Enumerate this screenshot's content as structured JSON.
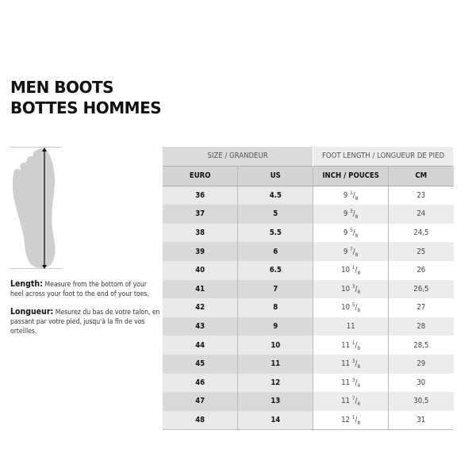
{
  "title": {
    "line1": "MEN BOOTS",
    "line2": "BOTTES HOMMES"
  },
  "length": {
    "label": "Length:",
    "text": " Measure from the bottom of your heel across your foot to the end of your toes."
  },
  "longueur": {
    "label": "Longueur:",
    "text": " Mesurez du bas de votre talon, en passant par votre pied, jusqu'à la fin de vos orteilles."
  },
  "table": {
    "group_headers": [
      "SIZE / GRANDEUR",
      "FOOT LENGTH / LONGUEUR DE PIED"
    ],
    "headers": [
      "EURO",
      "US",
      "INCH / POUCES",
      "CM"
    ],
    "rows": [
      {
        "euro": "36",
        "us": "4.5",
        "inch_whole": "9",
        "inch_num": "1",
        "inch_den": "8",
        "cm": "23"
      },
      {
        "euro": "37",
        "us": "5",
        "inch_whole": "9",
        "inch_num": "3",
        "inch_den": "8",
        "cm": "24"
      },
      {
        "euro": "38",
        "us": "5.5",
        "inch_whole": "9",
        "inch_num": "5",
        "inch_den": "8",
        "cm": "24,5"
      },
      {
        "euro": "39",
        "us": "6",
        "inch_whole": "9",
        "inch_num": "7",
        "inch_den": "8",
        "cm": "25"
      },
      {
        "euro": "40",
        "us": "6.5",
        "inch_whole": "10",
        "inch_num": "1",
        "inch_den": "8",
        "cm": "26"
      },
      {
        "euro": "41",
        "us": "7",
        "inch_whole": "10",
        "inch_num": "3",
        "inch_den": "8",
        "cm": "26,5"
      },
      {
        "euro": "42",
        "us": "8",
        "inch_whole": "10",
        "inch_num": "5",
        "inch_den": "8",
        "cm": "27"
      },
      {
        "euro": "43",
        "us": "9",
        "inch_whole": "11",
        "inch_num": "",
        "inch_den": "",
        "cm": "28"
      },
      {
        "euro": "44",
        "us": "10",
        "inch_whole": "11",
        "inch_num": "1",
        "inch_den": "8",
        "cm": "28,5"
      },
      {
        "euro": "45",
        "us": "11",
        "inch_whole": "11",
        "inch_num": "3",
        "inch_den": "8",
        "cm": "29"
      },
      {
        "euro": "46",
        "us": "12",
        "inch_whole": "11",
        "inch_num": "3",
        "inch_den": "4",
        "cm": "30"
      },
      {
        "euro": "47",
        "us": "13",
        "inch_whole": "11",
        "inch_num": "7",
        "inch_den": "8",
        "cm": "30,5"
      },
      {
        "euro": "48",
        "us": "14",
        "inch_whole": "12",
        "inch_num": "1",
        "inch_den": "8",
        "cm": "31"
      }
    ]
  }
}
